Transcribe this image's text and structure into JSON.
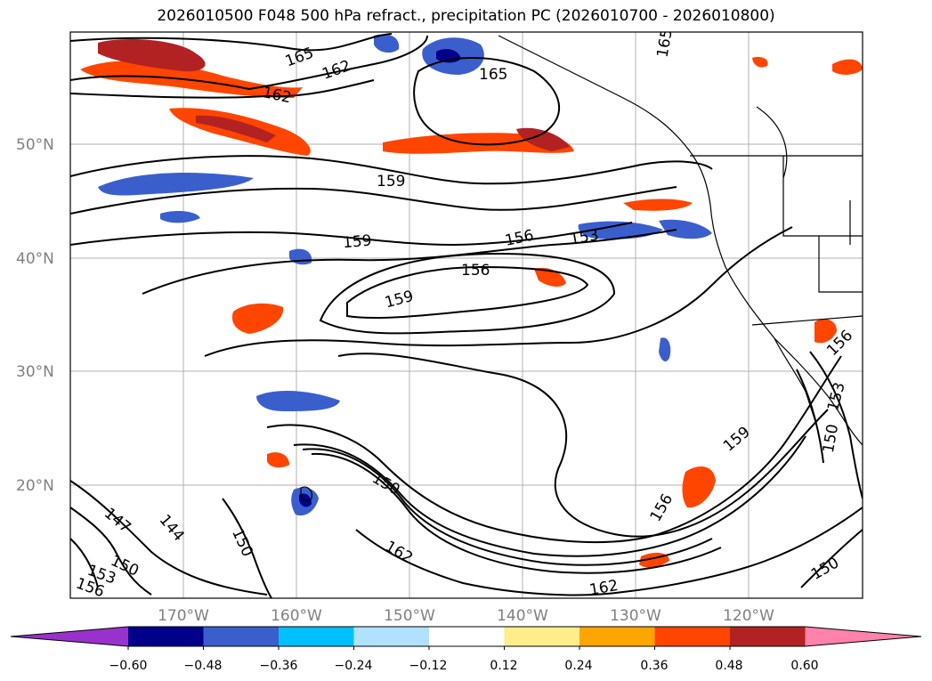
{
  "title": "2026010500 F048 500 hPa refract., precipitation PC (2026010700 - 2026010800)",
  "lat_labels": [
    "50°N",
    "40°N",
    "30°N",
    "20°N"
  ],
  "lon_labels": [
    "170°W",
    "160°W",
    "150°W",
    "140°W",
    "130°W",
    "120°W"
  ],
  "contour_labels": [
    "165",
    "162",
    "162",
    "165",
    "165",
    "159",
    "159",
    "156",
    "153",
    "156",
    "159",
    "156",
    "159",
    "150",
    "156",
    "153",
    "150",
    "147",
    "144",
    "150",
    "150",
    "153",
    "156",
    "162",
    "162",
    "150"
  ],
  "colorbar": {
    "colors": [
      "#9932CC",
      "#00008B",
      "#3A5FCD",
      "#00BFFF",
      "#B0E2FF",
      "#FFFFFF",
      "#FFEC8B",
      "#FFA500",
      "#FF4500",
      "#B22222",
      "#FF82AB"
    ],
    "tick_labels": [
      "−0.60",
      "−0.48",
      "−0.36",
      "−0.24",
      "−0.12",
      "0.12",
      "0.24",
      "0.36",
      "0.48",
      "0.60"
    ]
  }
}
